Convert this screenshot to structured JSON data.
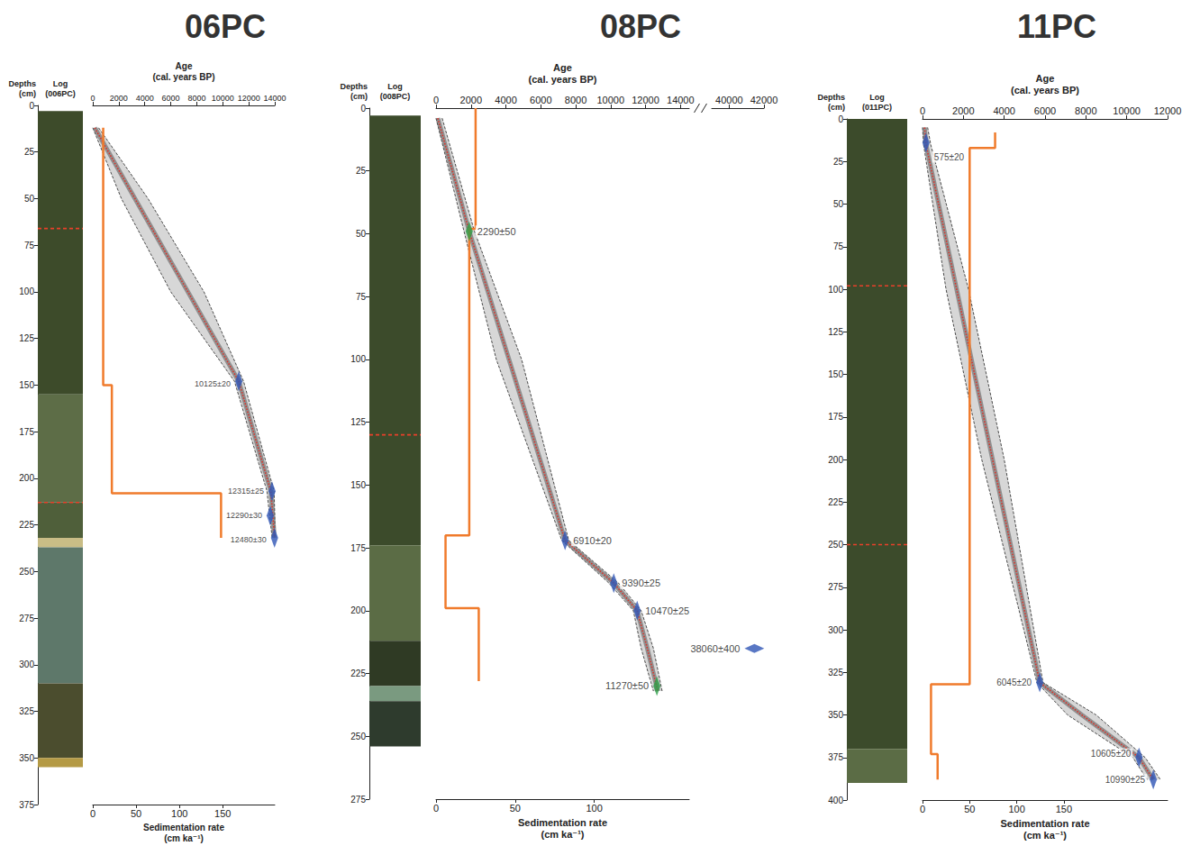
{
  "chart_data": [
    {
      "type": "line",
      "title": "06PC",
      "x_label": "Age (cal. years BP)",
      "xlim": [
        0,
        14000
      ],
      "xticks": [
        0,
        2000,
        4000,
        6000,
        8000,
        10000,
        12000,
        14000
      ],
      "x2_label": "Sedimentation rate (cm ka⁻¹)",
      "x2lim": [
        0,
        210
      ],
      "x2ticks": [
        0,
        50,
        100,
        150
      ],
      "y_label": "Depths (cm)",
      "ylim": [
        0,
        375
      ],
      "yticks": [
        0,
        25,
        50,
        75,
        100,
        125,
        150,
        175,
        200,
        225,
        250,
        275,
        300,
        325,
        350,
        375
      ],
      "grid": false,
      "data_labels": true,
      "core_log": {
        "title": "Log (006PC)",
        "layers": [
          {
            "top": 3,
            "bottom": 155,
            "color": "#3d4b2a"
          },
          {
            "top": 155,
            "bottom": 213,
            "color": "#5d6d47"
          },
          {
            "top": 213,
            "bottom": 232,
            "color": "#4f5f3a"
          },
          {
            "top": 232,
            "bottom": 237,
            "color": "#c9bd86"
          },
          {
            "top": 237,
            "bottom": 310,
            "color": "#5e786a"
          },
          {
            "top": 310,
            "bottom": 350,
            "color": "#4b4d2e"
          },
          {
            "top": 350,
            "bottom": 355,
            "color": "#b49a45"
          }
        ],
        "dashed_depths": [
          66,
          213
        ]
      },
      "envelope": {
        "depth": [
          12,
          50,
          100,
          148,
          207,
          220,
          232
        ],
        "min_age": [
          0,
          2200,
          6000,
          10900,
          13400,
          13600,
          13800
        ],
        "max_age": [
          450,
          4250,
          8550,
          11600,
          13950,
          14000,
          14000
        ],
        "color": "#bdbdbd",
        "line_style": "dashed"
      },
      "age_model": {
        "depth": [
          12,
          50,
          100,
          148,
          207,
          220,
          232
        ],
        "age": [
          150,
          3245,
          7320,
          11230,
          13700,
          13850,
          13980
        ],
        "color": "#d9342b",
        "line_style": "dotted"
      },
      "sedimentation_rate": {
        "depth": [
          12,
          150,
          150,
          208,
          208,
          232
        ],
        "rate": [
          12,
          12,
          22,
          22,
          148,
          148
        ],
        "color": "#f07b2c",
        "line_style": "solid",
        "axis": "x2"
      },
      "dates": {
        "depth": [
          148,
          207,
          220,
          232
        ],
        "age": [
          11230,
          13790,
          13650,
          13980
        ],
        "labels": [
          "10125±20",
          "12315±25",
          "12290±30",
          "12480±30"
        ],
        "colors": [
          "#2f55b5",
          "#2f55b5",
          "#2f55b5",
          "#2f55b5"
        ],
        "marker": "diamond"
      }
    },
    {
      "type": "line",
      "title": "08PC",
      "x_label": "Age (cal. years BP)",
      "xlim": [
        0,
        42000
      ],
      "xbreak": [
        14500,
        39000
      ],
      "xticks": [
        0,
        2000,
        4000,
        6000,
        8000,
        10000,
        12000,
        14000,
        40000,
        42000
      ],
      "x2_label": "Sedimentation rate (cm ka⁻¹)",
      "x2lim": [
        0,
        160
      ],
      "x2ticks": [
        0,
        50,
        100
      ],
      "y_label": "Depths (cm)",
      "ylim": [
        0,
        275
      ],
      "yticks": [
        0,
        25,
        50,
        75,
        100,
        125,
        150,
        175,
        200,
        225,
        250,
        275
      ],
      "grid": false,
      "data_labels": true,
      "core_log": {
        "title": "Log (008PC)",
        "layers": [
          {
            "top": 3,
            "bottom": 174,
            "color": "#3c4b2b"
          },
          {
            "top": 174,
            "bottom": 212,
            "color": "#5b6c45"
          },
          {
            "top": 212,
            "bottom": 230,
            "color": "#2f3a24"
          },
          {
            "top": 230,
            "bottom": 236,
            "color": "#7a9a80"
          },
          {
            "top": 236,
            "bottom": 254,
            "color": "#2e3b2d"
          }
        ],
        "dashed_depths": [
          130
        ]
      },
      "envelope": {
        "depth": [
          4,
          49,
          100,
          172,
          189,
          200,
          215,
          232
        ],
        "min_age": [
          0,
          1600,
          3450,
          7200,
          9900,
          11300,
          11750,
          12450
        ],
        "max_age": [
          350,
          2200,
          4900,
          7600,
          10450,
          11750,
          12450,
          12950
        ],
        "color": "#bdbdbd",
        "line_style": "dashed"
      },
      "age_model": {
        "depth": [
          4,
          49,
          100,
          172,
          189,
          200,
          215,
          232
        ],
        "age": [
          100,
          1900,
          4180,
          7390,
          10180,
          11520,
          12100,
          12700
        ],
        "color": "#d9342b",
        "line_style": "dotted"
      },
      "sedimentation_rate": {
        "depth": [
          0,
          48,
          48,
          170,
          170,
          199,
          199,
          228
        ],
        "rate": [
          25,
          25,
          21,
          21,
          6,
          6,
          27,
          27
        ],
        "color": "#f07b2c",
        "line_style": "solid",
        "axis": "x2"
      },
      "dates": {
        "depth": [
          49,
          172,
          189,
          200,
          215,
          230
        ],
        "age": [
          1900,
          7390,
          10180,
          11520,
          41450,
          12650
        ],
        "labels": [
          "2290±50",
          "6910±20",
          "9390±25",
          "10470±25",
          "38060±400",
          "11270±50"
        ],
        "colors": [
          "#2e9e48",
          "#2f55b5",
          "#2f55b5",
          "#2f55b5",
          "#2f55b5",
          "#2e9e48"
        ],
        "marker": "diamond"
      }
    },
    {
      "type": "line",
      "title": "11PC",
      "x_label": "Age (cal. years BP)",
      "xlim": [
        0,
        12000
      ],
      "xticks": [
        0,
        2000,
        4000,
        6000,
        8000,
        10000,
        12000
      ],
      "x2_label": "Sedimentation rate (cm ka⁻¹)",
      "x2lim": [
        0,
        260
      ],
      "x2ticks": [
        0,
        50,
        100,
        150
      ],
      "y_label": "Depths (cm)",
      "ylim": [
        0,
        400
      ],
      "yticks": [
        0,
        25,
        50,
        75,
        100,
        125,
        150,
        175,
        200,
        225,
        250,
        275,
        300,
        325,
        350,
        375,
        400
      ],
      "grid": false,
      "data_labels": true,
      "core_log": {
        "title": "Log (011PC)",
        "layers": [
          {
            "top": 0,
            "bottom": 370,
            "color": "#3c4b2b"
          },
          {
            "top": 370,
            "bottom": 390,
            "color": "#5b6c45"
          }
        ],
        "dashed_depths": [
          98,
          250
        ]
      },
      "envelope": {
        "depth": [
          5,
          15,
          100,
          200,
          331,
          350,
          375,
          388
        ],
        "min_age": [
          0,
          50,
          1150,
          2900,
          5600,
          7100,
          10300,
          11000
        ],
        "max_age": [
          250,
          400,
          2250,
          4000,
          5900,
          8500,
          10900,
          11650
        ],
        "color": "#bdbdbd",
        "line_style": "dashed"
      },
      "age_model": {
        "depth": [
          5,
          15,
          100,
          200,
          331,
          350,
          375,
          388
        ],
        "age": [
          100,
          170,
          1670,
          3430,
          5740,
          7800,
          10600,
          11300
        ],
        "color": "#d9342b",
        "line_style": "dotted"
      },
      "sedimentation_rate": {
        "depth": [
          8,
          17,
          17,
          332,
          332,
          373,
          373,
          388
        ],
        "rate": [
          77,
          77,
          50,
          50,
          9,
          9,
          16,
          16
        ],
        "color": "#f07b2c",
        "line_style": "solid",
        "axis": "x2"
      },
      "dates": {
        "depth": [
          14,
          331,
          375,
          388
        ],
        "age": [
          170,
          5740,
          10600,
          11300
        ],
        "labels": [
          "575±20",
          "6045±20",
          "10605±20",
          "10990±25"
        ],
        "colors": [
          "#2f55b5",
          "#2f55b5",
          "#2f55b5",
          "#2f55b5"
        ],
        "marker": "diamond"
      }
    }
  ]
}
